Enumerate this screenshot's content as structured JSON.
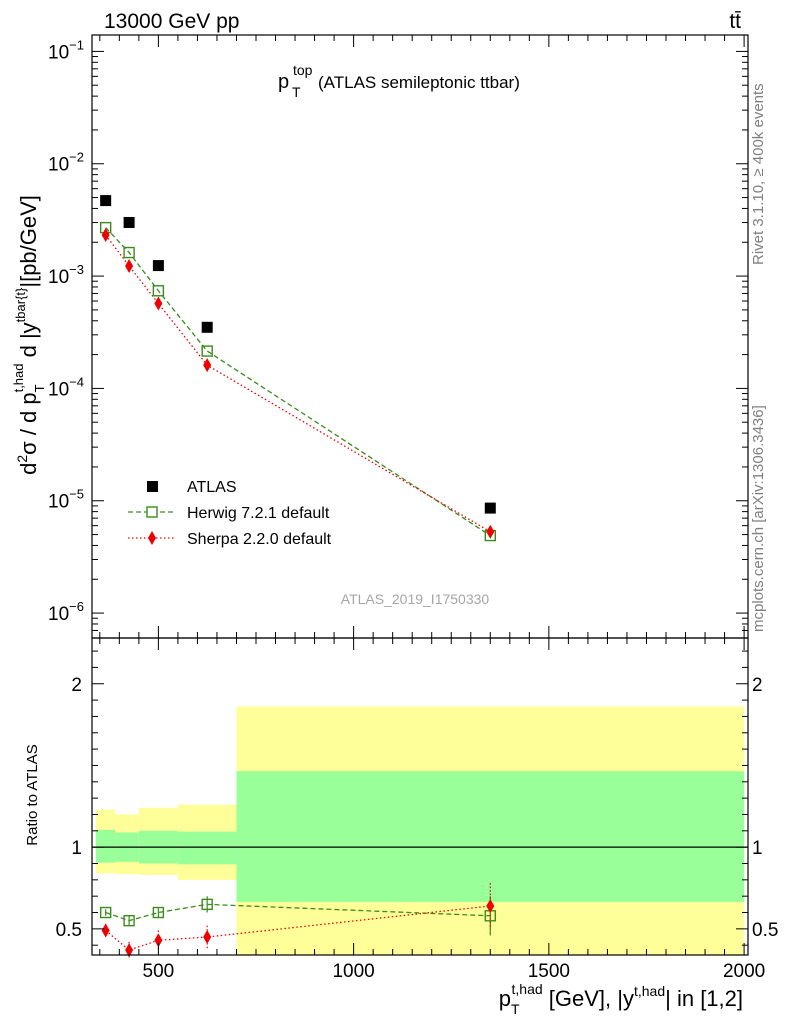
{
  "header": {
    "energy_label": "13000 GeV pp",
    "process_label": "tt̄"
  },
  "side_labels": {
    "rivet": "Rivet 3.1.10, ≥ 400k events",
    "mcplots": "mcplots.cern.ch [arXiv:1306.3436]"
  },
  "analysis_id": "ATLAS_2019_I1750330",
  "chart_data": [
    {
      "type": "scatter",
      "title_main": "p",
      "title_sup": "top",
      "title_sub": "T",
      "title_rest": " (ATLAS semileptonic ttbar)",
      "ylabel": "d²σ / d p_T^{t,had} d |y^{tbar{t}}|[pb/GeV]",
      "yscale": "log",
      "ylim": [
        6e-07,
        0.14
      ],
      "xlim": [
        330,
        2010
      ],
      "yticks": [
        {
          "v": 1e-06,
          "base": "10",
          "exp": "−6"
        },
        {
          "v": 1e-05,
          "base": "10",
          "exp": "−5"
        },
        {
          "v": 0.0001,
          "base": "10",
          "exp": "−4"
        },
        {
          "v": 0.001,
          "base": "10",
          "exp": "−3"
        },
        {
          "v": 0.01,
          "base": "10",
          "exp": "−2"
        },
        {
          "v": 0.1,
          "base": "10",
          "exp": "−1"
        }
      ],
      "x": [
        365,
        425,
        500,
        625,
        1350
      ],
      "series": [
        {
          "name": "ATLAS",
          "color": "#000000",
          "marker": "square-filled",
          "values": [
            0.0047,
            0.003,
            0.00124,
            0.00035,
            8.6e-06
          ]
        },
        {
          "name": "Herwig 7.2.1 default",
          "color": "#3a8c1c",
          "marker": "square-open",
          "line": "dashed",
          "values": [
            0.0027,
            0.00162,
            0.00074,
            0.000215,
            4.9e-06
          ]
        },
        {
          "name": "Sherpa 2.2.0 default",
          "color": "#ee0000",
          "marker": "diamond",
          "line": "dotted",
          "values": [
            0.00232,
            0.00123,
            0.00057,
            0.000161,
            5.3e-06
          ]
        }
      ],
      "legend_position": "bottom-left"
    },
    {
      "type": "scatter",
      "ylabel": "Ratio to ATLAS",
      "xlabel": "p_T^{t,had} [GeV], |y^{t,had}| in [1,2]",
      "xlim": [
        330,
        2010
      ],
      "ylim": [
        0.34,
        2.28
      ],
      "xticks": [
        500,
        1000,
        1500,
        2000
      ],
      "yticks": [
        0.5,
        1,
        2
      ],
      "bins": [
        {
          "lo": 340,
          "hi": 390,
          "green": [
            0.905,
            1.105
          ],
          "yellow": [
            0.84,
            1.23
          ]
        },
        {
          "lo": 390,
          "hi": 450,
          "green": [
            0.91,
            1.09
          ],
          "yellow": [
            0.835,
            1.2
          ]
        },
        {
          "lo": 450,
          "hi": 550,
          "green": [
            0.9,
            1.1
          ],
          "yellow": [
            0.83,
            1.24
          ]
        },
        {
          "lo": 550,
          "hi": 700,
          "green": [
            0.895,
            1.095
          ],
          "yellow": [
            0.8,
            1.26
          ]
        },
        {
          "lo": 700,
          "hi": 2000,
          "green": [
            0.665,
            1.465
          ],
          "yellow": [
            0.34,
            1.86
          ]
        }
      ],
      "x": [
        365,
        425,
        500,
        625,
        1350
      ],
      "series": [
        {
          "name": "Herwig 7.2.1 default",
          "color": "#3a8c1c",
          "values": [
            0.6,
            0.55,
            0.6,
            0.65,
            0.58
          ],
          "err": [
            0.02,
            0.03,
            0.03,
            0.05,
            0.12
          ]
        },
        {
          "name": "Sherpa 2.2.0 default",
          "color": "#ee0000",
          "values": [
            0.49,
            0.37,
            0.43,
            0.45,
            0.64
          ],
          "err": [
            0.04,
            0.05,
            0.06,
            0.07,
            0.14
          ]
        }
      ]
    }
  ]
}
